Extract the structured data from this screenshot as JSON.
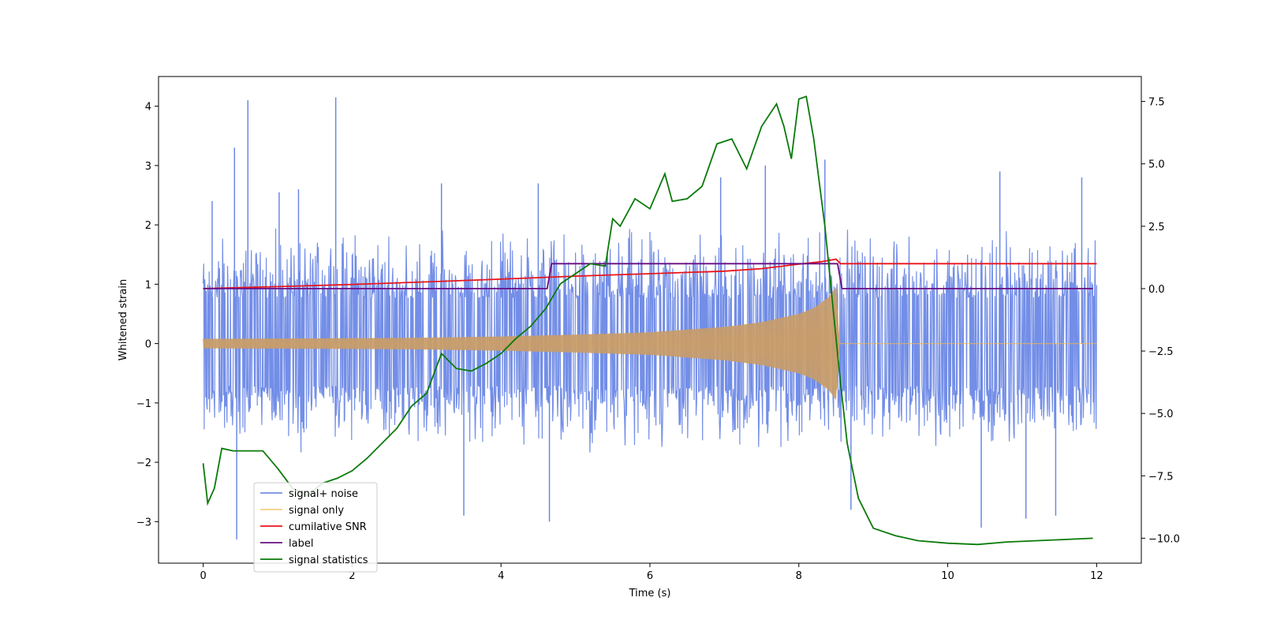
{
  "chart_data": {
    "type": "line",
    "title": "",
    "xlabel": "Time (s)",
    "ylabel": "Whitened strain",
    "y2label": "",
    "xlim": [
      -0.6,
      12.6
    ],
    "ylim": [
      -3.7,
      4.5
    ],
    "y2lim": [
      -11.0,
      8.5
    ],
    "grid": false,
    "legend_position": "lower-left",
    "x_ticks": [
      0,
      2,
      4,
      6,
      8,
      10,
      12
    ],
    "x_tick_labels": [
      "0",
      "2",
      "4",
      "6",
      "8",
      "10",
      "12"
    ],
    "y_ticks": [
      -3,
      -2,
      -1,
      0,
      1,
      2,
      3,
      4
    ],
    "y_tick_labels": [
      "−3",
      "−2",
      "−1",
      "0",
      "1",
      "2",
      "3",
      "4"
    ],
    "y2_ticks": [
      -10,
      -7.5,
      -5,
      -2.5,
      0,
      2.5,
      5,
      7.5
    ],
    "y2_tick_labels": [
      "−10.0",
      "−7.5",
      "−5.0",
      "−2.5",
      "0.0",
      "2.5",
      "5.0",
      "7.5"
    ],
    "series": [
      {
        "name": "signal+ noise",
        "color": "#6b88e6",
        "axis": "left",
        "kind": "noise_band",
        "x": [
          0,
          12
        ],
        "y_typical_range": [
          -1.3,
          1.4
        ],
        "spikes": [
          {
            "x": 0.12,
            "y": 2.4
          },
          {
            "x": 0.42,
            "y": 3.3
          },
          {
            "x": 0.6,
            "y": 4.1
          },
          {
            "x": 1.02,
            "y": 2.55
          },
          {
            "x": 1.28,
            "y": 2.6
          },
          {
            "x": 1.78,
            "y": 4.15
          },
          {
            "x": 3.2,
            "y": 2.7
          },
          {
            "x": 4.5,
            "y": 2.7
          },
          {
            "x": 6.95,
            "y": 2.8
          },
          {
            "x": 7.55,
            "y": 3.0
          },
          {
            "x": 8.35,
            "y": 3.1
          },
          {
            "x": 10.7,
            "y": 2.9
          },
          {
            "x": 11.8,
            "y": 2.8
          },
          {
            "x": 0.45,
            "y": -3.3
          },
          {
            "x": 3.5,
            "y": -2.9
          },
          {
            "x": 4.65,
            "y": -3.0
          },
          {
            "x": 8.7,
            "y": -2.8
          },
          {
            "x": 10.45,
            "y": -3.1
          },
          {
            "x": 11.05,
            "y": -2.95
          },
          {
            "x": 11.45,
            "y": -2.9
          }
        ]
      },
      {
        "name": "signal only",
        "color": "#f5b942",
        "axis": "left",
        "kind": "chirp_envelope",
        "x": [
          0.0,
          1.0,
          2.0,
          3.0,
          4.0,
          5.0,
          6.0,
          7.0,
          7.5,
          8.0,
          8.2,
          8.4,
          8.5,
          8.55,
          12.0
        ],
        "upper": [
          0.08,
          0.085,
          0.09,
          0.1,
          0.12,
          0.15,
          0.19,
          0.28,
          0.36,
          0.5,
          0.6,
          0.78,
          0.95,
          0.0,
          0.0
        ],
        "lower": [
          -0.08,
          -0.085,
          -0.09,
          -0.1,
          -0.12,
          -0.15,
          -0.19,
          -0.28,
          -0.36,
          -0.5,
          -0.6,
          -0.78,
          -0.95,
          0.0,
          0.0
        ]
      },
      {
        "name": "cumilative SNR",
        "color": "#e8151b",
        "axis": "right",
        "x": [
          0.0,
          1.0,
          2.0,
          3.0,
          4.0,
          5.0,
          6.0,
          7.0,
          7.5,
          8.0,
          8.3,
          8.5,
          8.56,
          12.0
        ],
        "y": [
          0.0,
          0.08,
          0.17,
          0.27,
          0.38,
          0.5,
          0.6,
          0.7,
          0.8,
          0.98,
          1.08,
          1.18,
          1.0,
          1.0
        ]
      },
      {
        "name": "label",
        "color": "#6a0d83",
        "axis": "right",
        "x": [
          0.0,
          4.62,
          4.68,
          8.52,
          8.58,
          11.95
        ],
        "y": [
          0.0,
          0.0,
          1.0,
          1.0,
          0.0,
          0.0
        ]
      },
      {
        "name": "signal statistics",
        "color": "#0a7a0a",
        "axis": "right",
        "x": [
          0.0,
          0.06,
          0.15,
          0.25,
          0.4,
          0.6,
          0.8,
          1.0,
          1.2,
          1.4,
          1.6,
          1.8,
          2.0,
          2.2,
          2.4,
          2.6,
          2.8,
          3.0,
          3.2,
          3.4,
          3.6,
          3.8,
          4.0,
          4.2,
          4.4,
          4.6,
          4.8,
          5.0,
          5.2,
          5.4,
          5.5,
          5.6,
          5.8,
          6.0,
          6.2,
          6.3,
          6.5,
          6.7,
          6.9,
          7.1,
          7.3,
          7.5,
          7.7,
          7.8,
          7.9,
          8.0,
          8.1,
          8.2,
          8.35,
          8.45,
          8.55,
          8.65,
          8.8,
          9.0,
          9.3,
          9.6,
          10.0,
          10.4,
          10.8,
          11.2,
          11.6,
          11.95
        ],
        "y": [
          -7.0,
          -8.6,
          -8.0,
          -6.4,
          -6.5,
          -6.5,
          -6.5,
          -7.2,
          -8.0,
          -8.3,
          -7.8,
          -7.6,
          -7.3,
          -6.8,
          -6.2,
          -5.6,
          -4.7,
          -4.2,
          -2.6,
          -3.2,
          -3.3,
          -3.0,
          -2.6,
          -2.0,
          -1.5,
          -0.8,
          0.2,
          0.6,
          1.0,
          0.9,
          2.8,
          2.5,
          3.6,
          3.2,
          4.6,
          3.5,
          3.6,
          4.1,
          5.8,
          6.0,
          4.8,
          6.5,
          7.4,
          6.5,
          5.2,
          7.6,
          7.7,
          6.0,
          2.5,
          -0.5,
          -3.5,
          -6.2,
          -8.4,
          -9.6,
          -9.9,
          -10.1,
          -10.2,
          -10.25,
          -10.15,
          -10.1,
          -10.05,
          -10.0
        ]
      }
    ]
  }
}
